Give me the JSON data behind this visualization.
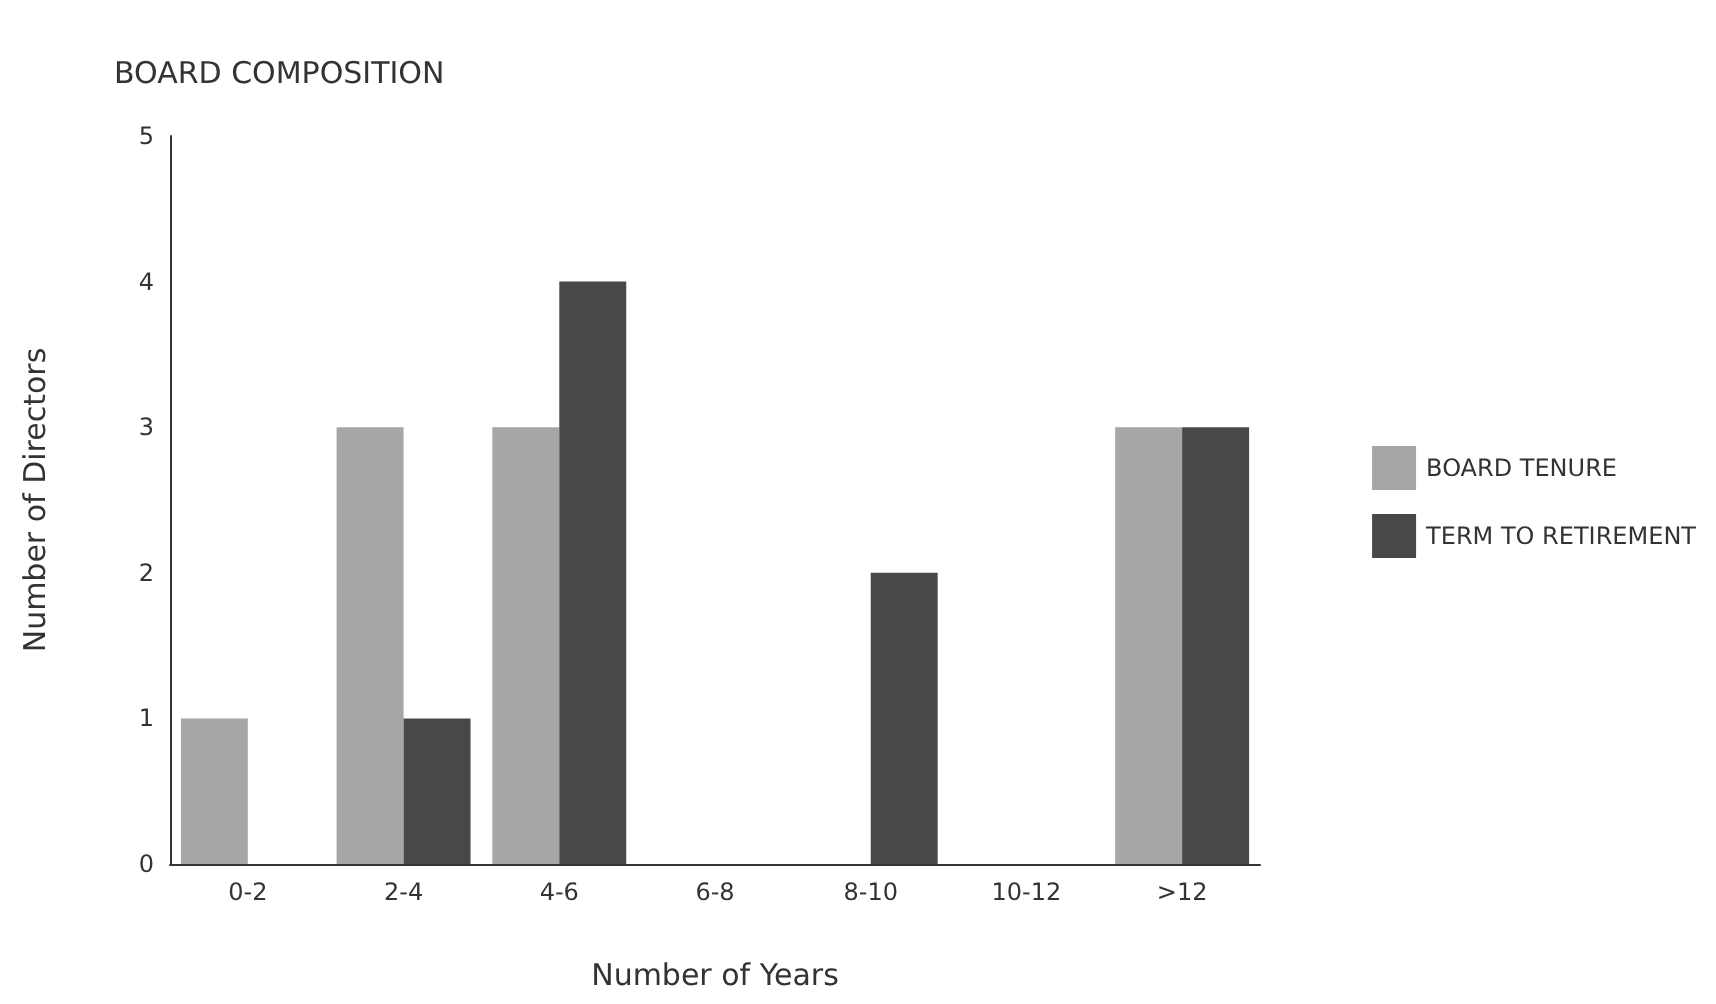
{
  "chart_data": {
    "type": "bar",
    "title": "BOARD COMPOSITION",
    "xlabel": "Number of Years",
    "ylabel": "Number of Directors",
    "categories": [
      "0-2",
      "2-4",
      "4-6",
      "6-8",
      "8-10",
      "10-12",
      ">12"
    ],
    "series": [
      {
        "name": "BOARD TENURE",
        "color": "#a6a6a6",
        "values": [
          1,
          3,
          3,
          0,
          0,
          0,
          3
        ]
      },
      {
        "name": "TERM TO RETIREMENT",
        "color": "#48484a",
        "values": [
          0,
          1,
          4,
          0,
          2,
          0,
          3
        ]
      }
    ],
    "ylim": [
      0,
      5
    ],
    "yticks": [
      0,
      1,
      2,
      3,
      4,
      5
    ],
    "grid": false,
    "legend": "right"
  }
}
